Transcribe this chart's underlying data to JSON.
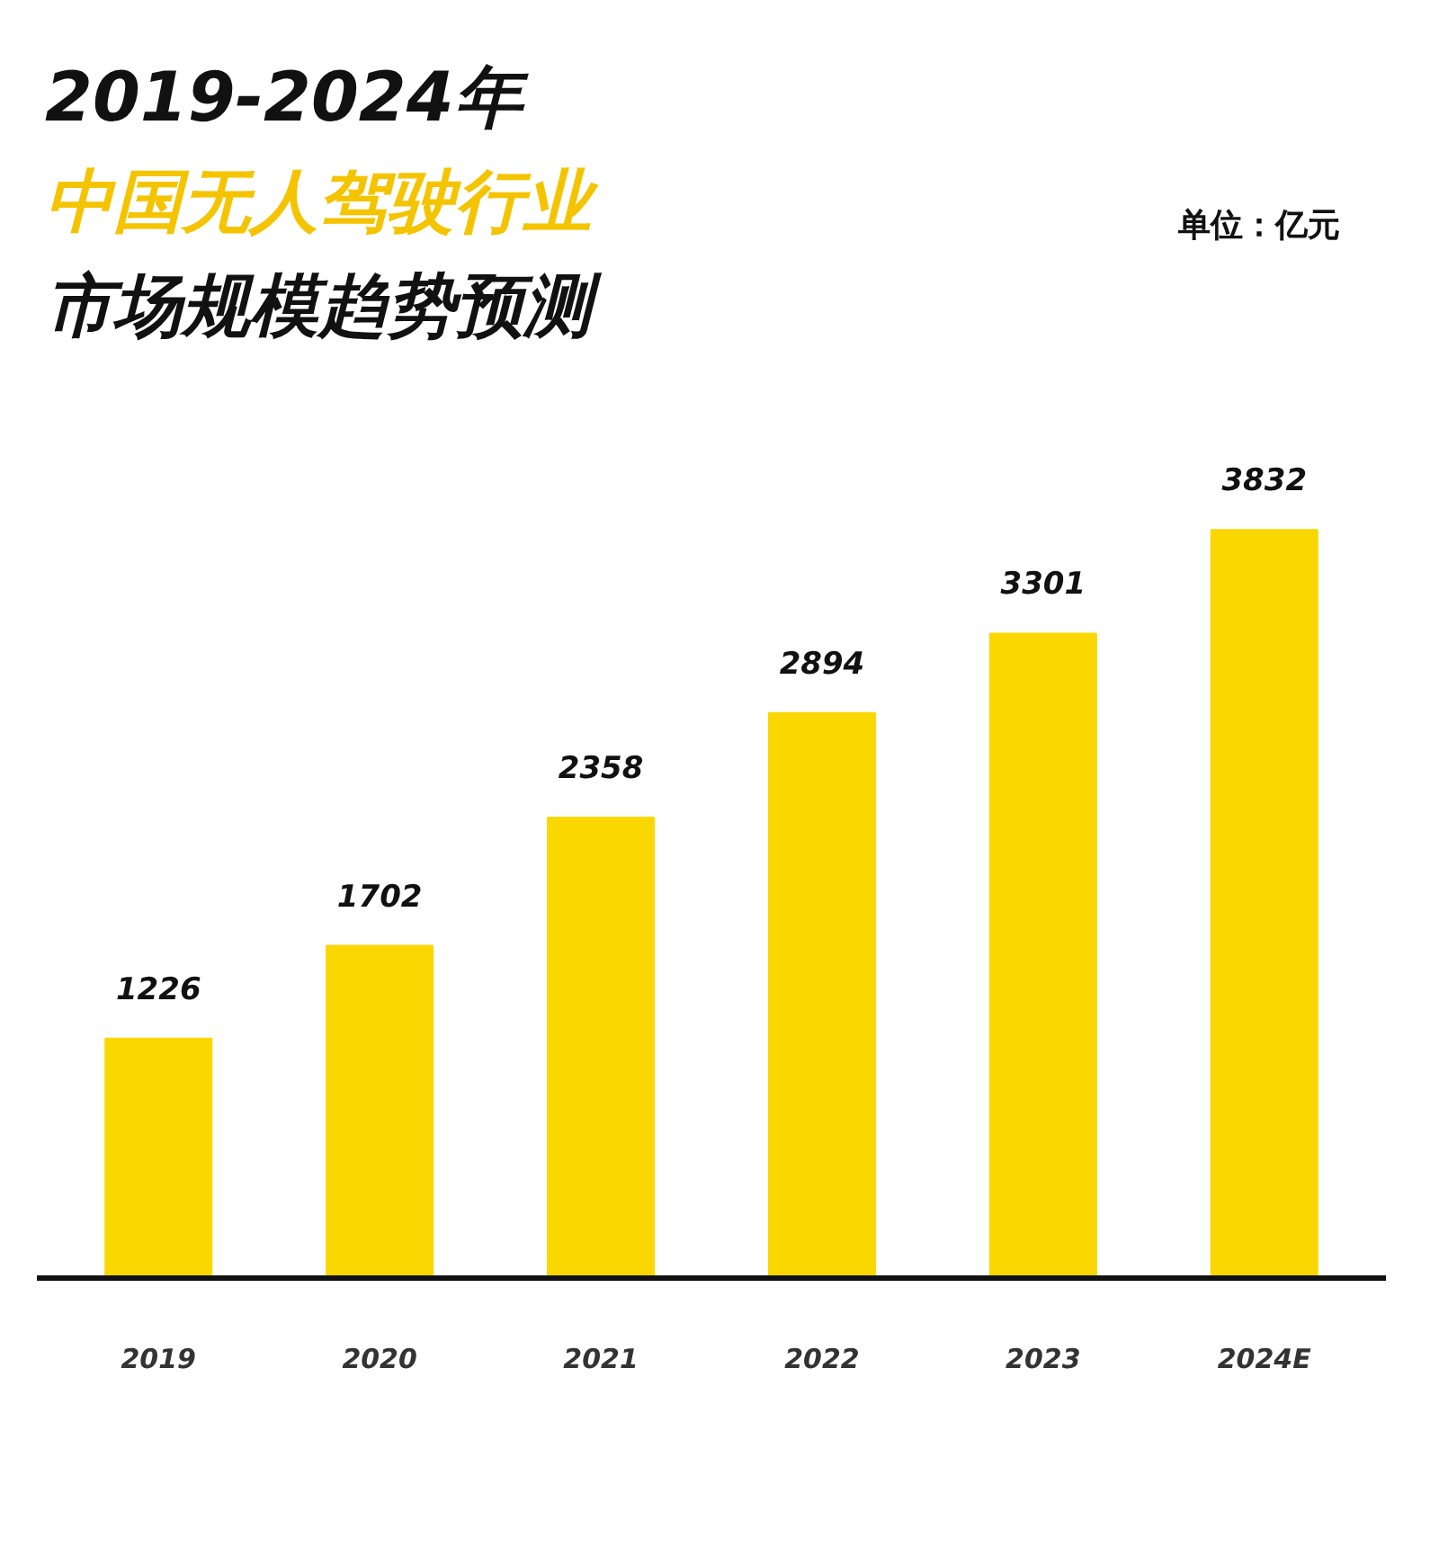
{
  "chart_data": {
    "type": "bar",
    "title": "2019-2024年",
    "subtitle": "中国无人驾驶行业市场规模趋势预测",
    "annotations": [
      "单位：亿元"
    ],
    "categories": [
      "2019",
      "2020",
      "2021",
      "2022",
      "2023",
      "2024E"
    ],
    "values": [
      1226,
      1702,
      2358,
      2894,
      3301,
      3832
    ],
    "color": "#fad700",
    "data_labels": true,
    "grid": false
  }
}
